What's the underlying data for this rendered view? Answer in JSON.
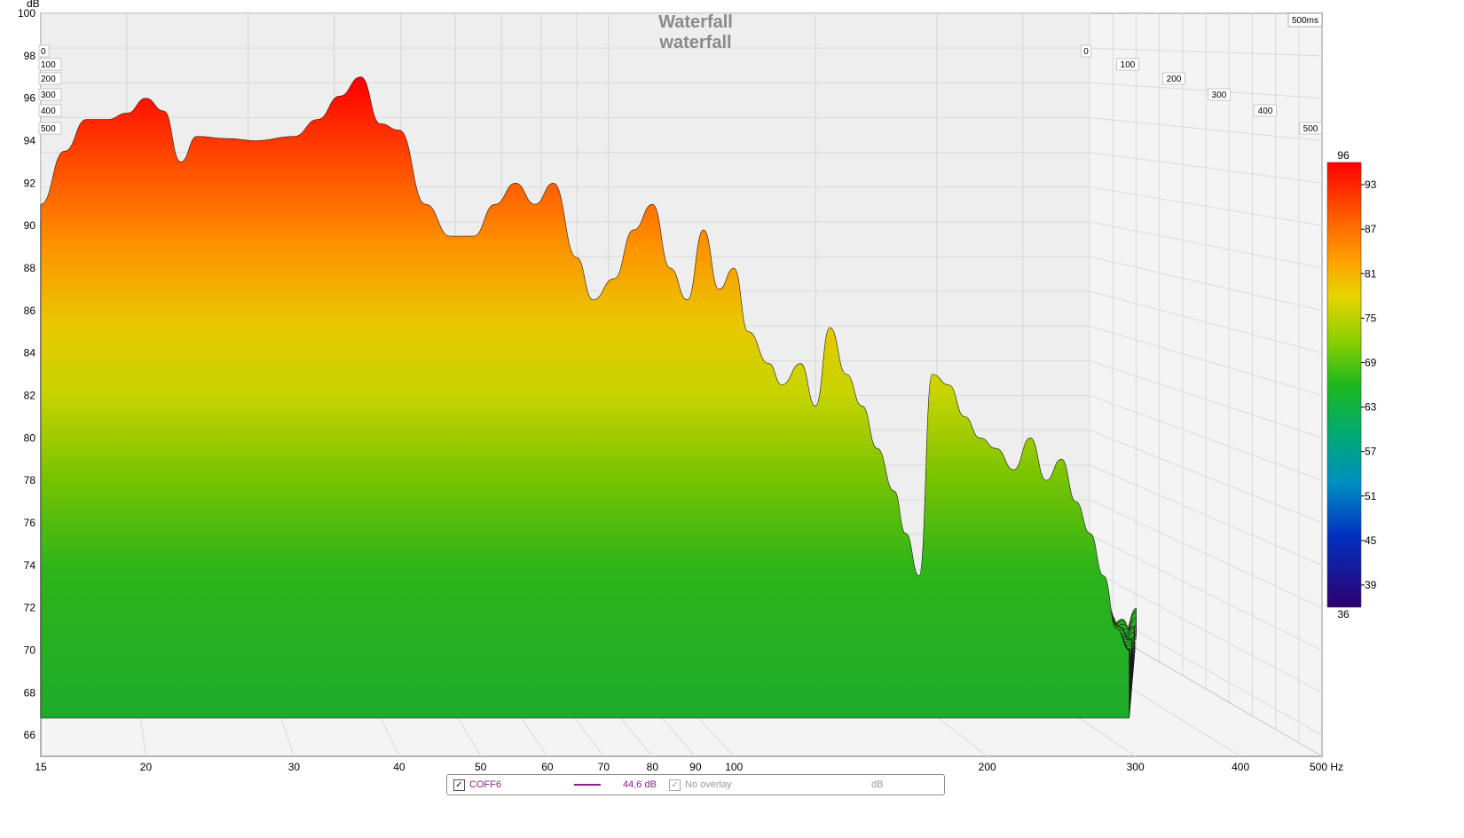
{
  "chart_data": {
    "type": "waterfall",
    "title": "Waterfall",
    "subtitle": "waterfall",
    "x_unit": "Hz",
    "y_unit": "dB",
    "xlim": [
      15,
      500
    ],
    "ylim": [
      65,
      100
    ],
    "x_ticks": [
      15,
      20,
      30,
      40,
      50,
      60,
      70,
      80,
      90,
      100,
      200,
      300,
      400,
      500
    ],
    "x_tick_labels": [
      "15",
      "20",
      "30",
      "40",
      "50",
      "60",
      "70",
      "80",
      "90",
      "100",
      "200",
      "300",
      "400",
      "500 Hz"
    ],
    "y_ticks": [
      66,
      68,
      70,
      72,
      74,
      76,
      78,
      80,
      82,
      84,
      86,
      88,
      90,
      92,
      94,
      96,
      98,
      100
    ],
    "time_label": "500ms",
    "time_ticks_left": [
      "0",
      "100",
      "200",
      "300",
      "400",
      "500"
    ],
    "time_ticks_right": [
      "0",
      "100",
      "200",
      "300",
      "400",
      "500"
    ],
    "colorbar": {
      "max_label": "96",
      "min_label": "36",
      "ticks": [
        "93",
        "87",
        "81",
        "75",
        "69",
        "63",
        "57",
        "51",
        "45",
        "39"
      ],
      "colors": [
        "#ff0000",
        "#ff5000",
        "#ff9a00",
        "#e8d000",
        "#98d000",
        "#20b820",
        "#00a878",
        "#0088c0",
        "#0030c0",
        "#2a0080"
      ]
    },
    "front_slice_db": [
      [
        15,
        91.0
      ],
      [
        16,
        93.5
      ],
      [
        17,
        95.0
      ],
      [
        18,
        95.0
      ],
      [
        19,
        95.3
      ],
      [
        20,
        96.0
      ],
      [
        21,
        95.4
      ],
      [
        22,
        93.0
      ],
      [
        23,
        94.2
      ],
      [
        25,
        94.1
      ],
      [
        27,
        94.0
      ],
      [
        30,
        94.2
      ],
      [
        32,
        95.0
      ],
      [
        34,
        96.1
      ],
      [
        36,
        97.0
      ],
      [
        38,
        94.8
      ],
      [
        40,
        94.5
      ],
      [
        43,
        91.0
      ],
      [
        46,
        89.5
      ],
      [
        49,
        89.5
      ],
      [
        52,
        91.0
      ],
      [
        55,
        92.0
      ],
      [
        58,
        91.0
      ],
      [
        61,
        92.0
      ],
      [
        65,
        88.5
      ],
      [
        68,
        86.5
      ],
      [
        72,
        87.5
      ],
      [
        76,
        89.8
      ],
      [
        80,
        91.0
      ],
      [
        84,
        88.0
      ],
      [
        88,
        86.5
      ],
      [
        92,
        89.8
      ],
      [
        96,
        87.0
      ],
      [
        100,
        88.0
      ],
      [
        104,
        85.0
      ],
      [
        110,
        83.5
      ],
      [
        114,
        82.5
      ],
      [
        120,
        83.5
      ],
      [
        125,
        81.5
      ],
      [
        130,
        85.2
      ],
      [
        136,
        83.0
      ],
      [
        142,
        81.5
      ],
      [
        148,
        79.5
      ],
      [
        155,
        77.5
      ],
      [
        160,
        75.5
      ],
      [
        166,
        73.5
      ],
      [
        172,
        83.0
      ],
      [
        180,
        82.5
      ],
      [
        188,
        81.0
      ],
      [
        196,
        80.0
      ],
      [
        205,
        79.5
      ],
      [
        215,
        78.5
      ],
      [
        225,
        80.0
      ],
      [
        235,
        78.0
      ],
      [
        245,
        79.0
      ],
      [
        255,
        77.0
      ],
      [
        265,
        75.5
      ],
      [
        275,
        73.5
      ],
      [
        285,
        71.0
      ],
      [
        295,
        70.0
      ]
    ],
    "num_slices": 60
  },
  "legend": {
    "series_name": "COFF6",
    "series_value": "44,6 dB",
    "series_color": "#8a1f8a",
    "overlay_label": "No overlay",
    "overlay_unit": "dB",
    "checkbox_mark": "✓"
  }
}
